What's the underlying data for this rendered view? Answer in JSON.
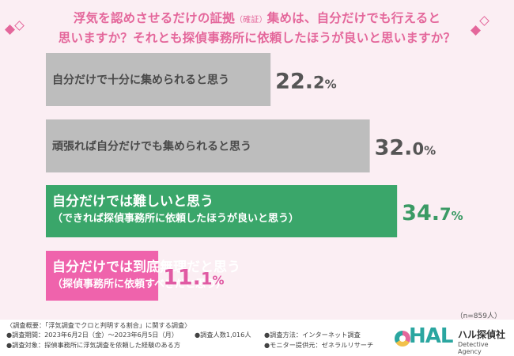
{
  "title": {
    "line1_a": "浮気を認めさせるだけの証拠",
    "line1_small": "（確証）",
    "line1_b": "集めは、自分だけでも行えると",
    "line2": "思いますか？それとも探偵事務所に依頼したほうが良いと思いますか？"
  },
  "chart_data": {
    "type": "bar",
    "orientation": "horizontal",
    "xlim": [
      0,
      40
    ],
    "categories": [
      [
        "自分だけで十分に集められると思う"
      ],
      [
        "頑張れば自分だけでも集められると思う"
      ],
      [
        "自分だけでは難しいと思う",
        "（できれば探偵事務所に依頼したほうが良いと思う）"
      ],
      [
        "自分だけでは到底無理だと思う",
        "（探偵事務所に依頼すべきだと思う）"
      ]
    ],
    "values": [
      22.2,
      32.0,
      34.7,
      11.1
    ],
    "value_labels": [
      {
        "int": "22.",
        "dec": "2",
        "unit": "%"
      },
      {
        "int": "32.",
        "dec": "0",
        "unit": "%"
      },
      {
        "int": "34.",
        "dec": "7",
        "unit": "%"
      },
      {
        "int": "11.",
        "dec": "1",
        "unit": "%"
      }
    ],
    "colors": [
      "#bdbdbd",
      "#bdbdbd",
      "#3aa66a",
      "#ef63ac"
    ],
    "label_colors": [
      "#4a4a4a",
      "#4a4a4a",
      "#ffffff",
      "#ffffff"
    ],
    "value_colors": [
      "#555555",
      "#555555",
      "#3a9a64",
      "#e05aa3"
    ]
  },
  "sample_note": "（n=859人）",
  "footer": {
    "line1": "〈調査概要：「浮気調査でクロと判明する割合」に関する調査〉",
    "period": "●調査期間：2023年6月2日（金）〜2023年6月5日（月）",
    "target": "●調査対象：探偵事務所に浮気調査を依頼した経験のある方",
    "count": "●調査人数1,016人",
    "method": "●調査方法：インターネット調査",
    "monitor": "●モニター提供元：ゼネラルリサーチ"
  },
  "logo": {
    "mark": "HAL",
    "name": "ハル探偵社",
    "sub": "Detective Agency"
  }
}
